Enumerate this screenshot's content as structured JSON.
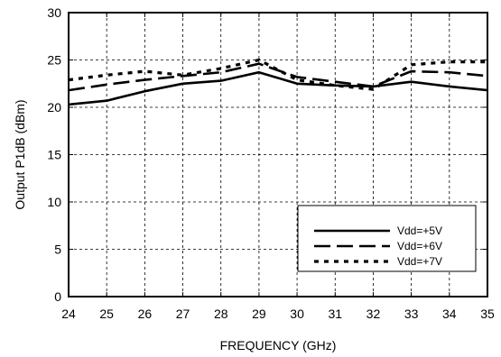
{
  "chart_data": {
    "type": "line",
    "title": "",
    "xlabel": "FREQUENCY (GHz)",
    "ylabel": "Output P1dB (dBm)",
    "xlim": [
      24,
      35
    ],
    "ylim": [
      0,
      30
    ],
    "x_ticks": [
      24,
      25,
      26,
      27,
      28,
      29,
      30,
      31,
      32,
      33,
      34,
      35
    ],
    "y_ticks": [
      0,
      5,
      10,
      15,
      20,
      25,
      30
    ],
    "grid": true,
    "legend_position": "bottom-right",
    "x": [
      24,
      25,
      26,
      27,
      28,
      29,
      30,
      31,
      32,
      33,
      34,
      35
    ],
    "series": [
      {
        "name": "Vdd=+5V",
        "style": "solid",
        "values": [
          20.3,
          20.7,
          21.7,
          22.5,
          22.8,
          23.7,
          22.5,
          22.3,
          22.2,
          22.7,
          22.2,
          21.8
        ]
      },
      {
        "name": "Vdd=+6V",
        "style": "dashed",
        "values": [
          21.8,
          22.4,
          22.9,
          23.3,
          23.7,
          24.6,
          23.2,
          22.7,
          22.2,
          23.8,
          23.7,
          23.3
        ]
      },
      {
        "name": "Vdd=+7V",
        "style": "dotted",
        "values": [
          22.9,
          23.4,
          23.8,
          23.4,
          24.1,
          25.0,
          22.9,
          22.3,
          21.9,
          24.5,
          24.8,
          24.8
        ]
      }
    ]
  }
}
